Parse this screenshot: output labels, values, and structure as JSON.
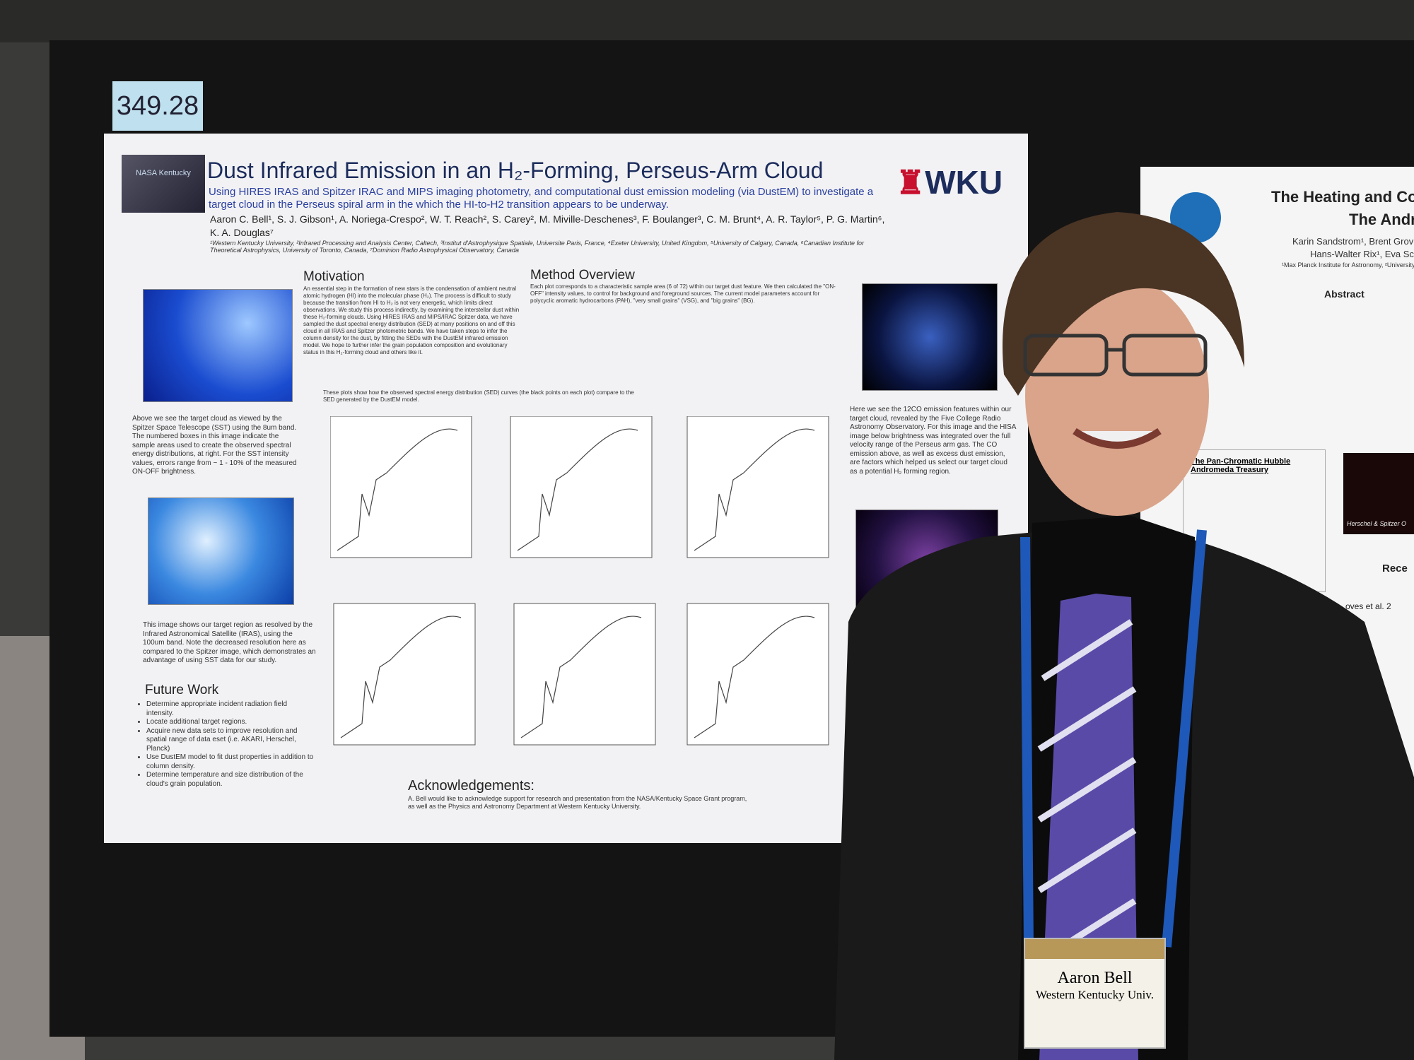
{
  "placard": "349.28",
  "poster": {
    "logo": "WKU",
    "badge_logo": "NASA Kentucky",
    "title": "Dust Infrared Emission in an H₂-Forming, Perseus-Arm Cloud",
    "subtitle": "Using HIRES IRAS and Spitzer IRAC and MIPS imaging photometry, and computational dust emission modeling (via DustEM) to investigate a target cloud in the Perseus spiral arm in the which the HI-to-H2 transition appears to be underway.",
    "authors": "Aaron C. Bell¹, S. J. Gibson¹, A. Noriega-Crespo², W. T. Reach², S. Carey², M. Miville-Deschenes³, F. Boulanger³, C. M. Brunt⁴, A. R. Taylor⁵, P. G. Martin⁶, K. A. Douglas⁷",
    "affiliations": "¹Western Kentucky University, ²Infrared Processing and Analysis Center, Caltech, ³Institut d'Astrophysique Spatiale, Universite Paris, France, ⁴Exeter University, United Kingdom, ⁵University of Calgary, Canada, ⁶Canadian Institute for Theoretical Astrophysics, University of Toronto, Canada, ⁷Dominion Radio Astrophysical Observatory, Canada",
    "motivation_heading": "Motivation",
    "motivation_text": "An essential step in the formation of new stars is the condensation of ambient neutral atomic hydrogen (HI) into the molecular phase (H₂). The process is difficult to study because the transition from HI to H₂ is not very energetic, which limits direct observations. We study this process indirectly, by examining the interstellar dust within these H₂-forming clouds. Using HIRES IRAS and MIPS/IRAC Spitzer data, we have sampled the dust spectral energy distribution (SED) at many positions on and off this cloud in all IRAS and Spitzer photometric bands. We have taken steps to infer the column density for the dust, by fitting the SEDs with the DustEM infrared emission model. We hope to further infer the grain population composition and evolutionary status in this H₂-forming cloud and others like it.",
    "method_heading": "Method Overview",
    "method_text": "Each plot corresponds to a characteristic sample area (6 of 72) within our target dust feature. We then calculated the \"ON-OFF\" intensity values, to control for background and foreground sources. The current model parameters account for polycyclic aromatic hydrocarbons (PAH), \"very small grains\" (VSG), and \"big grains\" (BG).",
    "plots_caption": "These plots show how the observed spectral energy distribution (SED) curves (the black points on each plot) compare to the SED generated by the DustEM model.",
    "spitzer_caption": "Above we see the target cloud as viewed by the Spitzer Space Telescope (SST) using the 8um band. The numbered boxes in this image indicate the sample areas used to create the observed spectral energy distributions, at right. For the SST intensity values, errors range from ~ 1 - 10% of the measured ON-OFF brightness.",
    "iras_caption": "This image shows our target region as resolved by the Infrared Astronomical Satellite (IRAS), using the 100um band. Note the decreased resolution here as compared to the Spitzer image, which demonstrates an advantage of using SST data for our study.",
    "co_caption": "Here we see the 12CO emission features within our target cloud, revealed by the Five College Radio Astronomy Observatory. For this image and the HISA image below brightness was integrated over the full velocity range of the Perseus arm gas. The CO emission above, as well as excess dust emission, are factors which helped us select our target cloud as a potential H₂ forming region.",
    "future_heading": "Future Work",
    "future_items": [
      "Determine appropriate incident radiation field intensity.",
      "Locate additional target regions.",
      "Acquire new data sets to improve resolution and spatial range of data eset (i.e. AKARI, Herschel, Planck)",
      "Use DustEM model to fit dust properties in addition to column density.",
      "Determine temperature and size distribution of the cloud's grain population."
    ],
    "ack_heading": "Acknowledgements:",
    "ack_text": "A. Bell would like to acknowledge support for research and presentation from the NASA/Kentucky Space Grant program, as well as the Physics and Astronomy Department at Western Kentucky University."
  },
  "neighbor_poster": {
    "title_1": "The Heating and Co",
    "title_2": "The Andr",
    "authors_1": "Karin Sandstrom¹, Brent Grov",
    "authors_2": "Hans-Walter Rix¹, Eva Sch",
    "affiliation": "¹Max Planck Institute for Astronomy, ²University of",
    "abstract_heading": "Abstract",
    "box_title": "The Pan-Chromatic Hubble Andromeda Treasury",
    "image_caption": "Herschel & Spitzer O",
    "side_label": "Rece",
    "ref": "oves et al. 2"
  },
  "badge": {
    "name": "Aaron Bell",
    "affiliation": "Western Kentucky Univ."
  }
}
